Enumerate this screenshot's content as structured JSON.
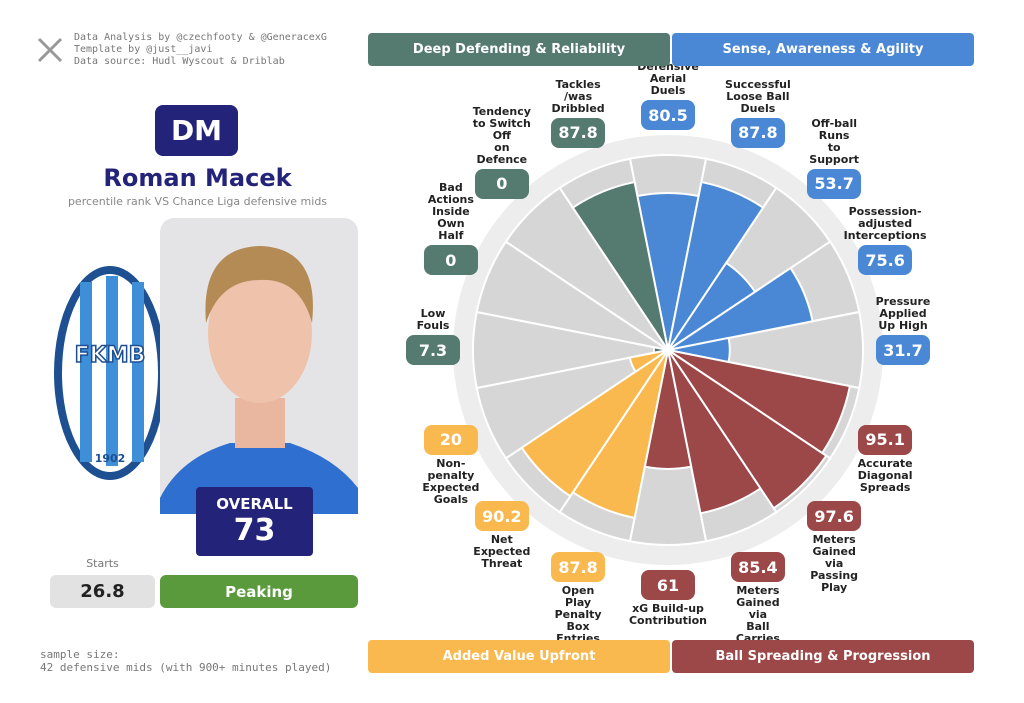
{
  "credits": [
    "Data Analysis by @czechfooty & @GeneracexG",
    "Template by @just__javi",
    "Data source: Hudl Wyscout & Driblab"
  ],
  "player": {
    "position": "DM",
    "name": "Roman Macek",
    "subtitle": "percentile rank VS Chance Liga defensive mids",
    "overall_label": "OVERALL",
    "overall": 73,
    "starts_label": "Starts",
    "starts": 26.8,
    "status": "Peaking"
  },
  "club_logo": {
    "text": "FKMB",
    "year": "1902"
  },
  "sample": [
    "sample size:",
    "42 defensive mids (with 900+ minutes played)"
  ],
  "chart_data": {
    "type": "pizza",
    "categories": [
      "Defensive\nAerial Duels",
      "Successful\nLoose Ball Duels",
      "Off-ball Runs\nto Support",
      "Possession-adjusted\nInterceptions",
      "Pressure\nApplied Up High",
      "Accurate\nDiagonal Spreads",
      "Meters Gained\nvia Passing Play",
      "Meters Gained via\nBall Carries",
      "xG Build-up\nContribution",
      "Open Play\nPenalty Box\nEntries",
      "Net Expected\nThreat",
      "Non-penalty\nExpected Goals",
      "Low Fouls",
      "Bad Actions\nInside\nOwn Half",
      "Tendency\nto Switch Off\non Defence",
      "Tackles\n/was Dribbled"
    ],
    "values": [
      80.5,
      87.8,
      53.7,
      75.6,
      31.7,
      95.1,
      97.6,
      85.4,
      61,
      87.8,
      90.2,
      20,
      7.3,
      0,
      0,
      87.8
    ],
    "colors": [
      "#4a88d6",
      "#4a88d6",
      "#4a88d6",
      "#4a88d6",
      "#4a88d6",
      "#9c4748",
      "#9c4748",
      "#9c4748",
      "#9c4748",
      "#f9b94f",
      "#f9b94f",
      "#f9b94f",
      "#557a70",
      "#557a70",
      "#557a70",
      "#557a70"
    ],
    "ylim": [
      0,
      100
    ],
    "groups": [
      {
        "name": "Deep Defending & Reliability",
        "color": "#557a70"
      },
      {
        "name": "Sense, Awareness & Agility",
        "color": "#4a88d6"
      },
      {
        "name": "Added Value Upfront",
        "color": "#f9b94f"
      },
      {
        "name": "Ball Spreading & Progression",
        "color": "#9c4748"
      }
    ]
  }
}
